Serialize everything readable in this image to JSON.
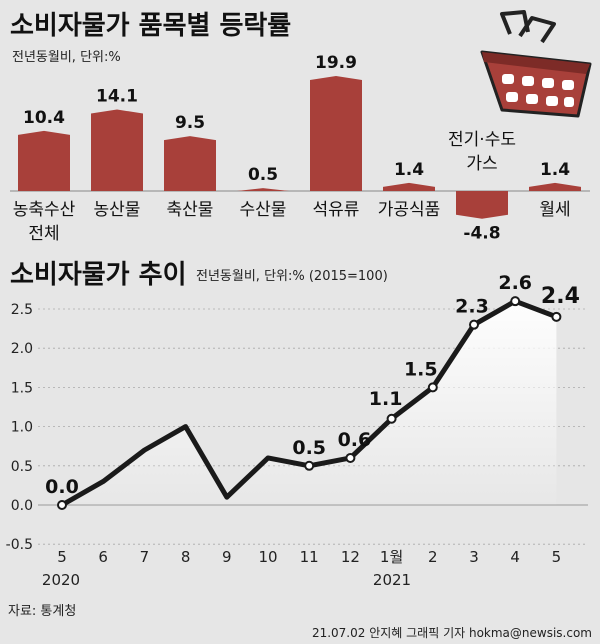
{
  "footer": {
    "source": "자료: 통계청",
    "credit": "21.07.02 안지혜 그래픽 기자 hokma@newsis.com"
  },
  "icons": {
    "basket": "shopping-basket-icon"
  },
  "colors": {
    "bar": "#a8403a",
    "line": "#1a1a1a",
    "gridline": "#aaaaaa",
    "marker_fill": "#ffffff"
  },
  "chart_data": [
    {
      "type": "bar",
      "title": "소비자물가 품목별 등락률",
      "subtitle": "전년동월비, 단위:%",
      "categories": [
        [
          "농축수산",
          "전체"
        ],
        [
          "농산물"
        ],
        [
          "축산물"
        ],
        [
          "수산물"
        ],
        [
          "석유류"
        ],
        [
          "가공식품"
        ],
        [
          "전기·수도",
          "가스"
        ],
        [
          "월세"
        ]
      ],
      "values": [
        10.4,
        14.1,
        9.5,
        0.5,
        19.9,
        1.4,
        -4.8,
        1.4
      ],
      "value_labels": [
        "10.4",
        "14.1",
        "9.5",
        "0.5",
        "19.9",
        "1.4",
        "-4.8",
        "1.4"
      ]
    },
    {
      "type": "line",
      "title": "소비자물가 추이",
      "subtitle": "전년동월비, 단위:%  (2015=100)",
      "x": [
        "5",
        "6",
        "7",
        "8",
        "9",
        "10",
        "11",
        "12",
        "1월",
        "2",
        "3",
        "4",
        "5"
      ],
      "year_labels": [
        "2020",
        "2021"
      ],
      "y": [
        0.0,
        0.3,
        0.7,
        1.0,
        0.1,
        0.6,
        0.5,
        0.6,
        1.1,
        1.5,
        2.3,
        2.6,
        2.4
      ],
      "point_labels": [
        {
          "index": 0,
          "text": "0.0"
        },
        {
          "index": 6,
          "text": "0.5"
        },
        {
          "index": 7,
          "text": "0.6"
        },
        {
          "index": 8,
          "text": "1.1"
        },
        {
          "index": 9,
          "text": "1.5"
        },
        {
          "index": 10,
          "text": "2.3"
        },
        {
          "index": 11,
          "text": "2.6"
        },
        {
          "index": 12,
          "text": "2.4"
        }
      ],
      "markers_from_index": 6,
      "yticks": [
        "-0.5",
        "0.0",
        "0.5",
        "1.0",
        "1.5",
        "2.0",
        "2.5"
      ],
      "ylim": [
        -0.5,
        2.6
      ],
      "grid": true
    }
  ]
}
